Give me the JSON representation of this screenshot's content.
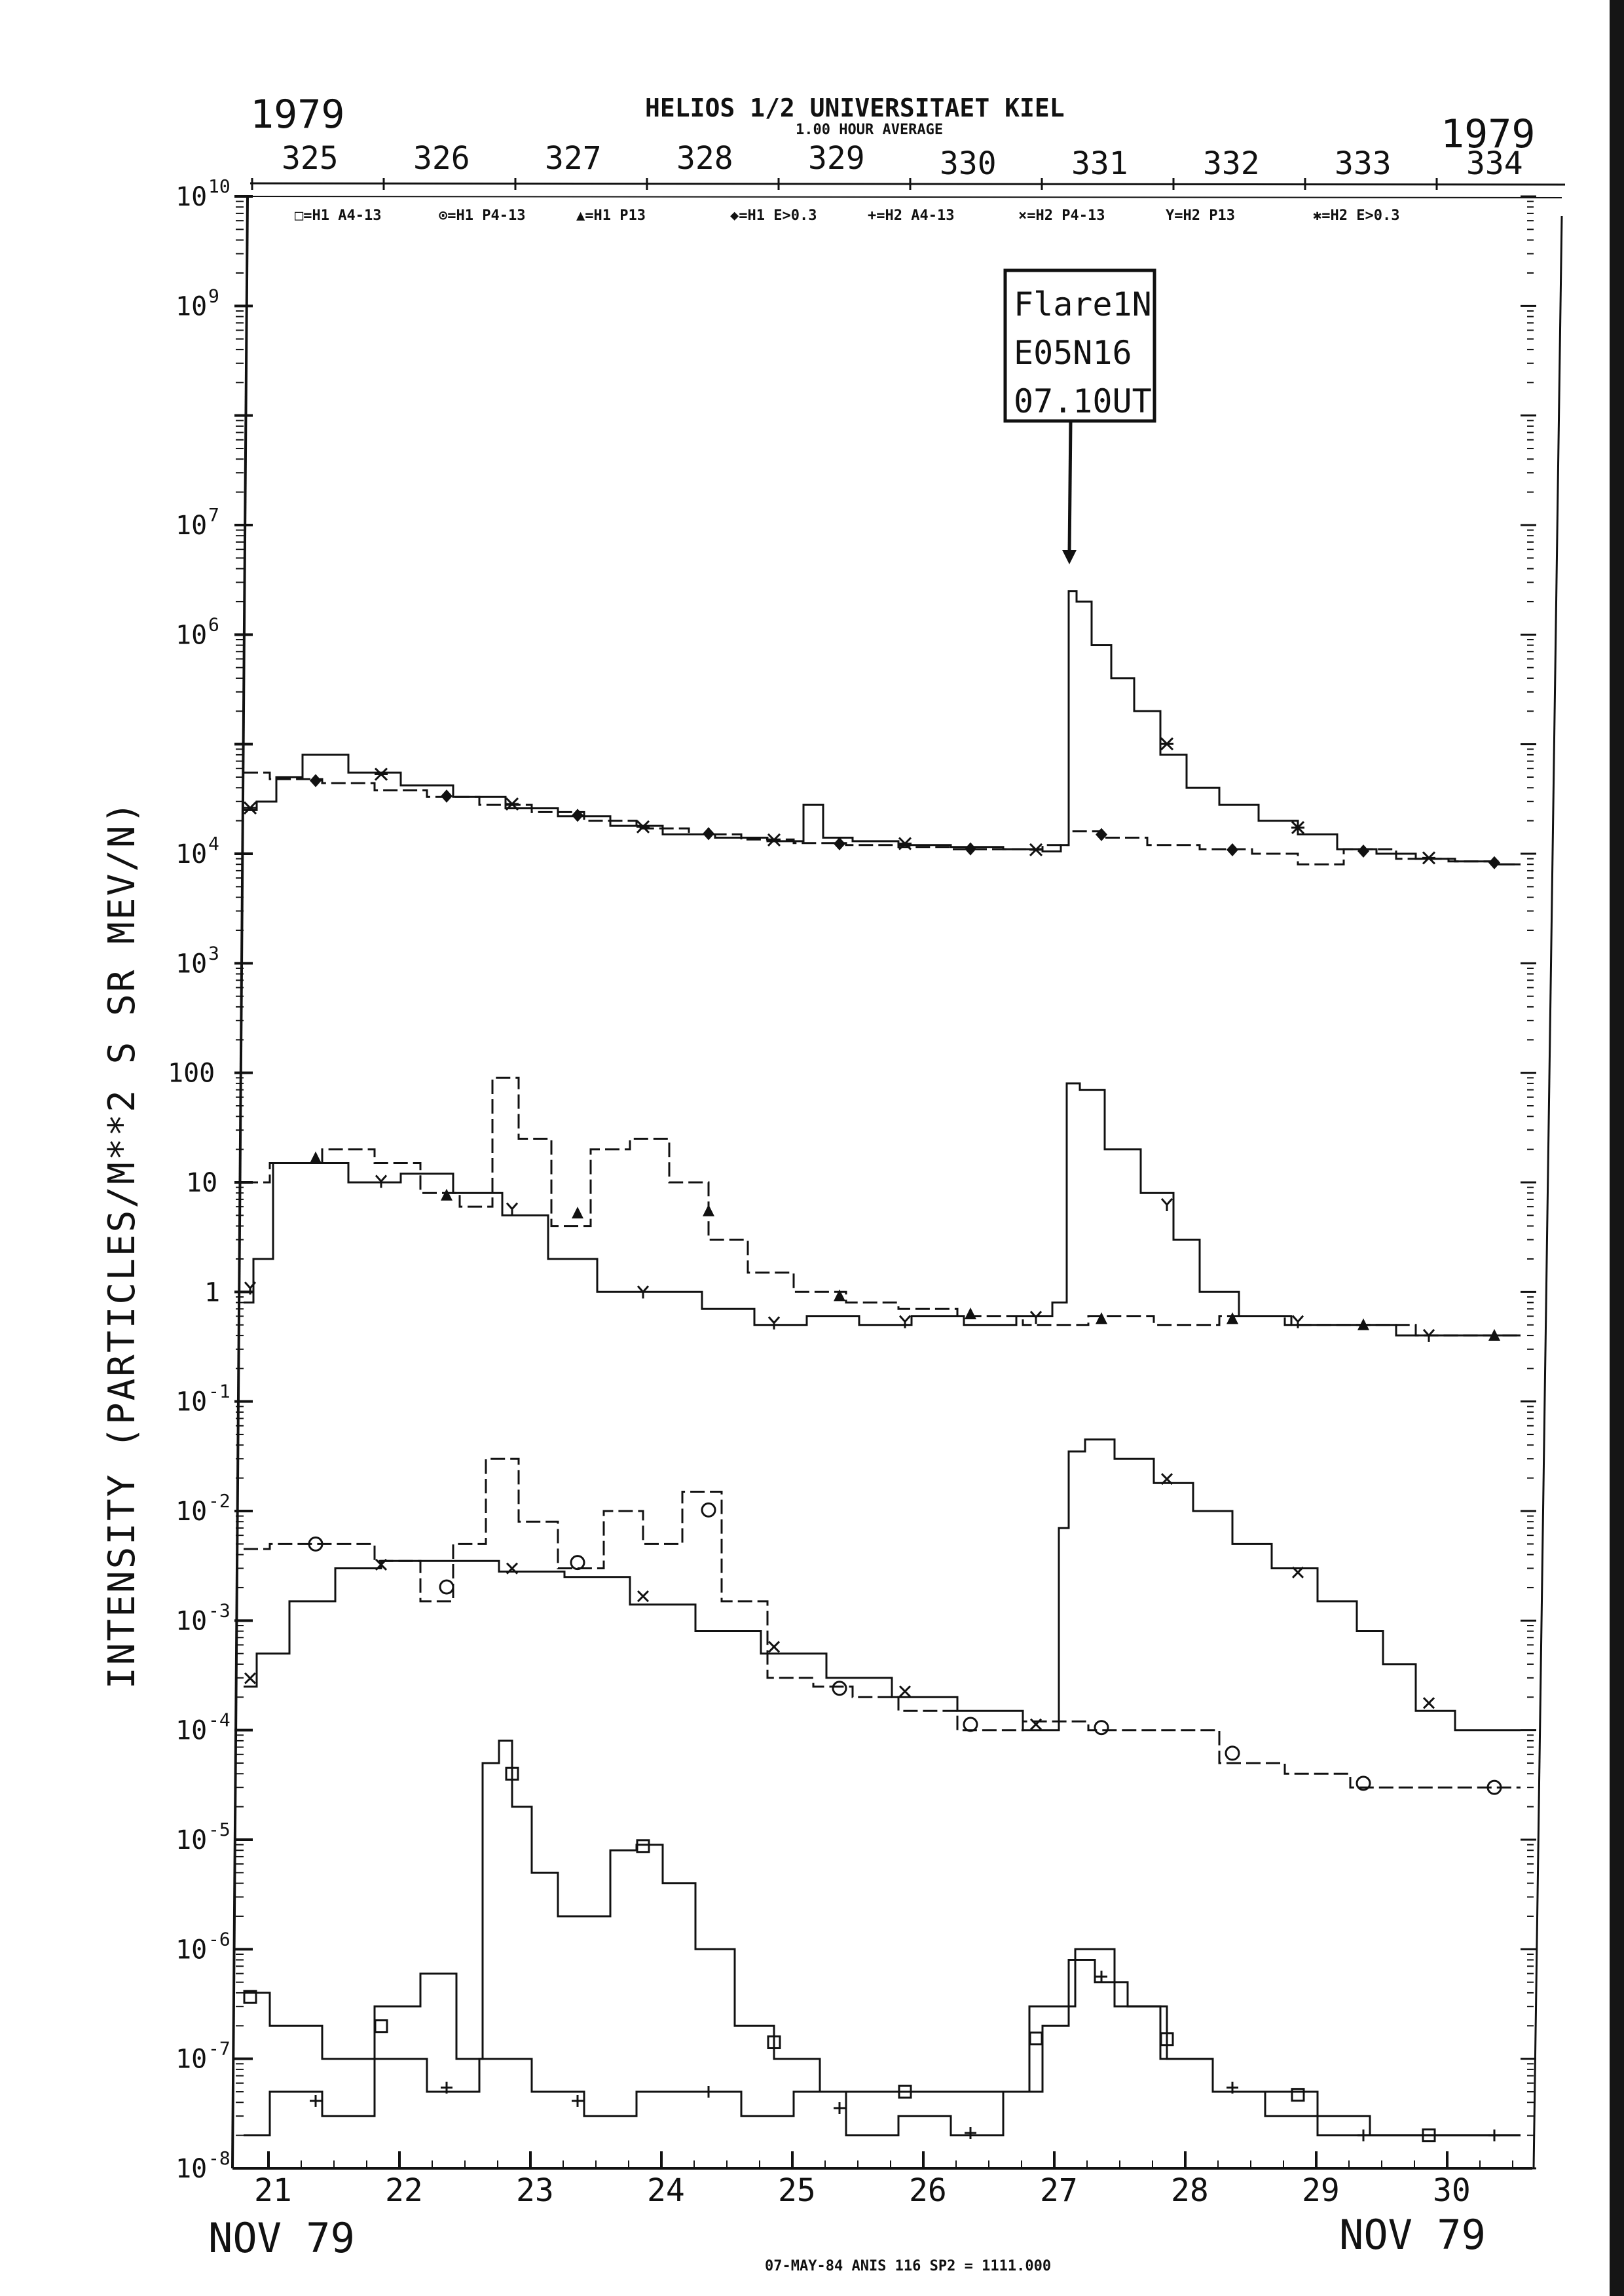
{
  "chart_data": {
    "type": "line",
    "title": "HELIOS 1/2  UNIVERSITAET KIEL",
    "subtitle": "1.00 HOUR AVERAGE",
    "year_left": "1979",
    "year_right": "1979",
    "doy_ticks": [
      "325",
      "326",
      "327",
      "328",
      "329",
      "330",
      "331",
      "332",
      "333",
      "334"
    ],
    "legend": [
      {
        "symbol": "square",
        "text": "□=H1 A4-13"
      },
      {
        "symbol": "circle",
        "text": "⊙=H1 P4-13"
      },
      {
        "symbol": "triangle",
        "text": "▲=H1 P13"
      },
      {
        "symbol": "diamond",
        "text": "◆=H1 E>0.3"
      },
      {
        "symbol": "plus",
        "text": "+=H2 A4-13"
      },
      {
        "symbol": "x",
        "text": "×=H2 P4-13"
      },
      {
        "symbol": "y",
        "text": "Y=H2 P13"
      },
      {
        "symbol": "star",
        "text": "✱=H2 E>0.3"
      }
    ],
    "ylabel": "INTENSITY (PARTICLES/M**2 S SR MEV/N)",
    "y_scale": "log",
    "ylim": [
      1e-08,
      10000000000.0
    ],
    "y_tick_labels": [
      {
        "exp": 10,
        "label": "10",
        "sup": "10"
      },
      {
        "exp": 9,
        "label": "10",
        "sup": "9"
      },
      {
        "exp": 7,
        "label": "10",
        "sup": "7"
      },
      {
        "exp": 6,
        "label": "10",
        "sup": "6"
      },
      {
        "exp": 4,
        "label": "10",
        "sup": "4"
      },
      {
        "exp": 3,
        "label": "10",
        "sup": "3"
      },
      {
        "exp": 2,
        "label": "100",
        "sup": ""
      },
      {
        "exp": 1,
        "label": "10",
        "sup": ""
      },
      {
        "exp": 0,
        "label": "1",
        "sup": ""
      },
      {
        "exp": -1,
        "label": "10",
        "sup": "-1"
      },
      {
        "exp": -2,
        "label": "10",
        "sup": "-2"
      },
      {
        "exp": -3,
        "label": "10",
        "sup": "-3"
      },
      {
        "exp": -4,
        "label": "10",
        "sup": "-4"
      },
      {
        "exp": -5,
        "label": "10",
        "sup": "-5"
      },
      {
        "exp": -6,
        "label": "10",
        "sup": "-6"
      },
      {
        "exp": -7,
        "label": "10",
        "sup": "-7"
      },
      {
        "exp": -8,
        "label": "10",
        "sup": "-8"
      }
    ],
    "x_tick_labels": [
      "21",
      "22",
      "23",
      "24",
      "25",
      "26",
      "27",
      "28",
      "29",
      "30"
    ],
    "xlim_day": [
      20.7,
      30.6
    ],
    "x_month_left": "NOV 79",
    "x_month_right": "NOV 79",
    "annotation": {
      "lines": [
        "Flare1N",
        "E05N16",
        "07.10UT"
      ],
      "day": 27.2,
      "arrow_to": 5.3
    },
    "footer": "07-MAY-84 ANIS 116 SP2 = 1111.000",
    "series": [
      {
        "name": "✱=H2 E>0.3",
        "style": "solid",
        "x": [
          20.8,
          21.0,
          21.1,
          21.4,
          21.8,
          22.2,
          22.6,
          23.0,
          23.4,
          23.8,
          24.2,
          24.6,
          25.0,
          25.15,
          25.3,
          25.6,
          26.0,
          26.4,
          26.8,
          27.0,
          27.08,
          27.12,
          27.2,
          27.35,
          27.5,
          27.7,
          27.9,
          28.1,
          28.4,
          28.7,
          29.0,
          29.3,
          29.6,
          29.9,
          30.2,
          30.55
        ],
        "values": [
          25000,
          30000,
          50000,
          80000,
          55000,
          42000,
          33000,
          26000,
          22000,
          18000,
          15000,
          14000,
          13000,
          28000,
          14000,
          13000,
          12000,
          11500,
          11000,
          10500,
          12000,
          2500000,
          2000000,
          800000,
          400000,
          200000,
          80000,
          40000,
          28000,
          20000,
          15000,
          11000,
          10000,
          9000,
          8500,
          8000
        ]
      },
      {
        "name": "◆=H1 E>0.3",
        "style": "dashed",
        "x": [
          20.8,
          21.2,
          21.6,
          22.0,
          22.4,
          22.8,
          23.2,
          23.6,
          24.0,
          24.4,
          24.8,
          25.2,
          25.6,
          26.0,
          26.4,
          26.8,
          27.0,
          27.2,
          27.5,
          27.9,
          28.3,
          28.7,
          29.0,
          29.4,
          29.8,
          30.2,
          30.55
        ],
        "values": [
          55000,
          48000,
          44000,
          38000,
          33000,
          28000,
          24000,
          20000,
          17000,
          15000,
          13500,
          12500,
          12000,
          11500,
          11000,
          11000,
          12000,
          16000,
          14000,
          12000,
          11000,
          10000,
          8000,
          11000,
          9000,
          8500,
          8000
        ]
      },
      {
        "name": "×=H2 P4-13",
        "style": "solid",
        "x": [
          20.8,
          21.0,
          21.3,
          21.7,
          22.0,
          22.5,
          23.0,
          23.5,
          24.0,
          24.5,
          25.0,
          25.5,
          26.0,
          26.5,
          27.0,
          27.05,
          27.15,
          27.3,
          27.6,
          27.9,
          28.2,
          28.5,
          28.8,
          29.2,
          29.4,
          29.6,
          29.9,
          30.2,
          30.55
        ],
        "values": [
          0.00025,
          0.0005,
          0.0015,
          0.003,
          0.0035,
          0.0035,
          0.0028,
          0.0025,
          0.0014,
          0.0008,
          0.0005,
          0.0003,
          0.0002,
          0.00015,
          0.0001,
          0.007,
          0.035,
          0.045,
          0.03,
          0.018,
          0.01,
          0.005,
          0.003,
          0.0015,
          0.0008,
          0.0004,
          0.00015,
          0.0001,
          0.0001
        ]
      },
      {
        "name": "⊙=H1 P4-13",
        "style": "dashed",
        "x": [
          20.8,
          21.2,
          21.6,
          22.0,
          22.3,
          22.5,
          22.8,
          23.0,
          23.4,
          23.7,
          24.0,
          24.3,
          24.6,
          25.0,
          25.3,
          25.6,
          26.0,
          26.5,
          27.0,
          27.5,
          28.0,
          28.5,
          29.0,
          29.5,
          30.0,
          30.55
        ],
        "values": [
          0.0045,
          0.005,
          0.005,
          0.0035,
          0.0015,
          0.005,
          0.03,
          0.008,
          0.003,
          0.01,
          0.005,
          0.015,
          0.0015,
          0.0003,
          0.00025,
          0.0002,
          0.00015,
          0.0001,
          0.00012,
          0.0001,
          0.0001,
          5e-05,
          4e-05,
          3e-05,
          3e-05,
          3e-05
        ]
      },
      {
        "name": "Y=H2 P13",
        "style": "solid",
        "x": [
          20.8,
          20.95,
          21.1,
          21.4,
          21.8,
          22.2,
          22.6,
          22.95,
          23.3,
          23.7,
          24.1,
          24.5,
          24.9,
          25.3,
          25.7,
          26.1,
          26.5,
          26.9,
          27.05,
          27.12,
          27.25,
          27.5,
          27.8,
          28.0,
          28.2,
          28.6,
          29.0,
          29.4,
          29.8,
          30.2,
          30.55
        ],
        "values": [
          0.8,
          2,
          15,
          15,
          10,
          12,
          8,
          5,
          2,
          1,
          1,
          0.7,
          0.5,
          0.6,
          0.5,
          0.6,
          0.5,
          0.6,
          0.8,
          80,
          70,
          20,
          8,
          3,
          1,
          0.6,
          0.5,
          0.5,
          0.4,
          0.4,
          0.4
        ]
      },
      {
        "name": "▲=H1 P13",
        "style": "dashed",
        "x": [
          20.8,
          21.2,
          21.6,
          22.0,
          22.3,
          22.6,
          22.8,
          23.0,
          23.3,
          23.6,
          23.9,
          24.2,
          24.5,
          24.8,
          25.2,
          25.6,
          26.0,
          26.5,
          27.0,
          27.5,
          28.0,
          28.5,
          29.0,
          29.5,
          30.0,
          30.55
        ],
        "values": [
          10,
          15,
          20,
          15,
          8,
          6,
          90,
          25,
          4,
          20,
          25,
          10,
          3,
          1.5,
          1,
          0.8,
          0.7,
          0.6,
          0.5,
          0.6,
          0.5,
          0.6,
          0.5,
          0.5,
          0.4,
          0.4
        ]
      },
      {
        "name": "□=H1 A4-13",
        "style": "solid",
        "x": [
          20.8,
          21.2,
          21.6,
          22.0,
          22.3,
          22.55,
          22.7,
          22.8,
          22.9,
          23.1,
          23.3,
          23.5,
          23.7,
          23.9,
          24.1,
          24.4,
          24.7,
          25.0,
          25.4,
          25.8,
          26.2,
          26.6,
          27.0,
          27.3,
          27.6,
          28.0,
          28.4,
          28.8,
          29.2,
          29.6,
          30.0,
          30.55
        ],
        "values": [
          4e-07,
          2e-07,
          1e-07,
          3e-07,
          6e-07,
          1e-07,
          5e-05,
          8e-05,
          2e-05,
          5e-06,
          2e-06,
          2e-06,
          8e-06,
          9e-06,
          4e-06,
          1e-06,
          2e-07,
          1e-07,
          5e-08,
          5e-08,
          5e-08,
          5e-08,
          3e-07,
          1e-06,
          3e-07,
          1e-07,
          5e-08,
          5e-08,
          3e-08,
          2e-08,
          2e-08,
          2e-08
        ]
      },
      {
        "name": "+=H2 A4-13",
        "style": "solid",
        "x": [
          20.8,
          21.2,
          21.6,
          22.0,
          22.4,
          22.8,
          23.2,
          23.6,
          24.0,
          24.4,
          24.8,
          25.2,
          25.6,
          26.0,
          26.4,
          26.8,
          27.0,
          27.2,
          27.4,
          27.7,
          28.0,
          28.4,
          28.8,
          29.2,
          29.6,
          30.0,
          30.55
        ],
        "values": [
          2e-08,
          5e-08,
          3e-08,
          1e-07,
          5e-08,
          1e-07,
          5e-08,
          3e-08,
          5e-08,
          5e-08,
          3e-08,
          5e-08,
          2e-08,
          3e-08,
          2e-08,
          5e-08,
          2e-07,
          8e-07,
          5e-07,
          3e-07,
          1e-07,
          5e-08,
          3e-08,
          2e-08,
          2e-08,
          2e-08,
          2e-08
        ]
      }
    ],
    "marker_day_offsets": [
      0.05,
      0.55,
      1.05,
      1.55,
      2.05,
      2.55,
      3.05,
      3.55,
      4.05,
      4.55,
      5.05,
      5.55,
      6.05,
      6.55,
      7.05,
      7.55,
      8.05,
      8.55,
      9.05,
      9.55
    ]
  }
}
